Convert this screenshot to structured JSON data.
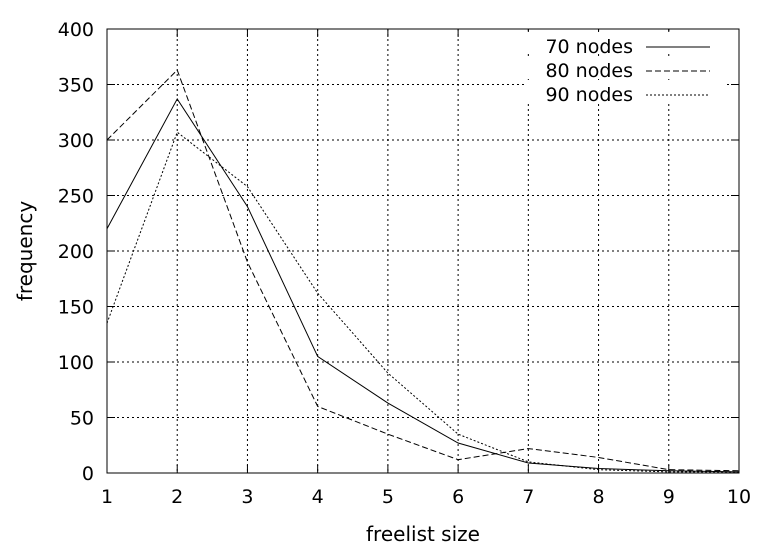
{
  "chart_data": {
    "type": "line",
    "title": "",
    "xlabel": "freelist size",
    "ylabel": "frequency",
    "xlim": [
      1,
      10
    ],
    "ylim": [
      0,
      400
    ],
    "x_ticks": [
      "1",
      "2",
      "3",
      "4",
      "5",
      "6",
      "7",
      "8",
      "9",
      "10"
    ],
    "y_ticks": [
      "0",
      "50",
      "100",
      "150",
      "200",
      "250",
      "300",
      "350",
      "400"
    ],
    "grid": true,
    "legend_position": "top-right",
    "x": [
      1,
      2,
      3,
      4,
      5,
      6,
      7,
      8,
      9,
      10
    ],
    "series": [
      {
        "name": "70 nodes",
        "style": "solid",
        "values": [
          220,
          337,
          240,
          105,
          63,
          27,
          9,
          4,
          2,
          1
        ]
      },
      {
        "name": "80 nodes",
        "style": "dashed",
        "values": [
          300,
          363,
          190,
          60,
          35,
          12,
          22,
          14,
          3,
          2
        ]
      },
      {
        "name": "90 nodes",
        "style": "dotted",
        "values": [
          135,
          307,
          258,
          162,
          90,
          35,
          10,
          3,
          1,
          1
        ]
      }
    ],
    "color": "#000000"
  }
}
